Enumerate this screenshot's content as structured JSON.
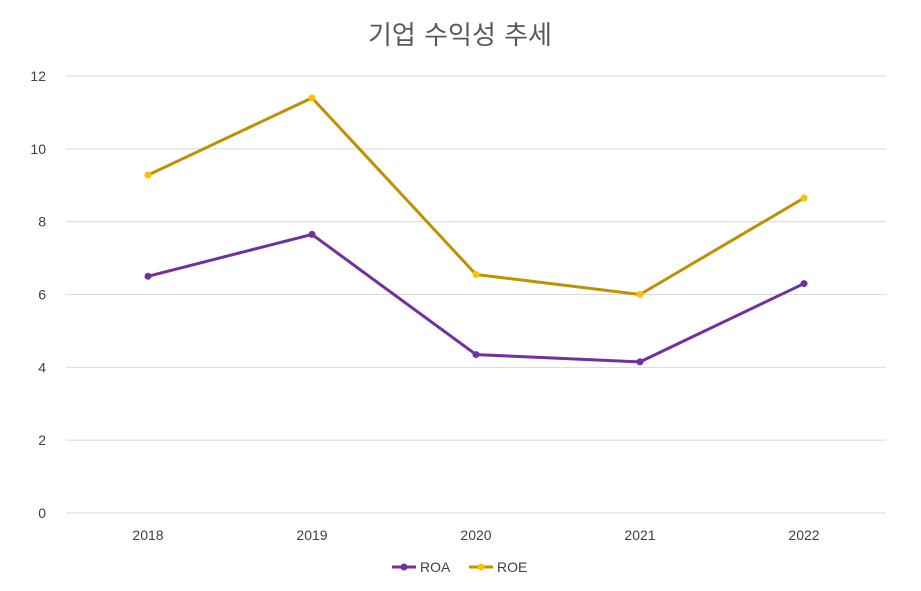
{
  "chart_data": {
    "type": "line",
    "title": "기업 수익성 추세",
    "categories": [
      "2018",
      "2019",
      "2020",
      "2021",
      "2022"
    ],
    "series": [
      {
        "name": "ROA",
        "values": [
          6.5,
          7.65,
          4.35,
          4.15,
          6.3
        ],
        "color": "#7030a0"
      },
      {
        "name": "ROE",
        "values": [
          9.28,
          11.4,
          6.55,
          6.0,
          8.65
        ],
        "color": "#bf9000"
      }
    ],
    "ylim": [
      0,
      12
    ],
    "yticks": [
      "0",
      "2",
      "4",
      "6",
      "8",
      "10",
      "12"
    ],
    "grid": true,
    "legend": "bottom",
    "marker_colors": {
      "ROA": "#7030a0",
      "ROE": "#ffc000"
    }
  }
}
